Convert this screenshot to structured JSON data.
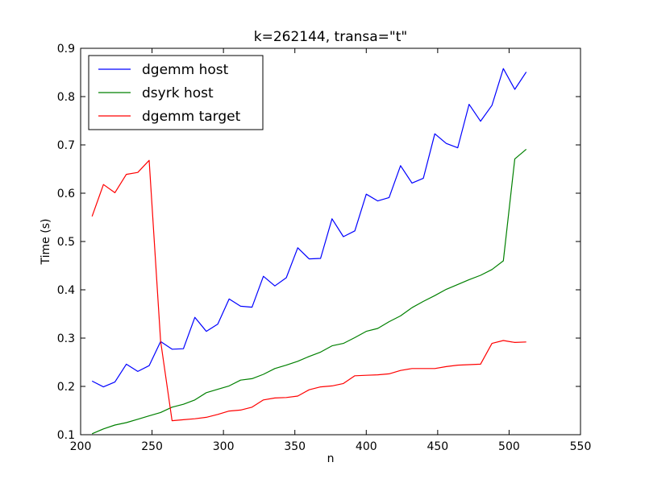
{
  "chart_data": {
    "type": "line",
    "title": "k=262144, transa=\"t\"",
    "xlabel": "n",
    "ylabel": "Time (s)",
    "xlim": [
      200,
      550
    ],
    "ylim": [
      0.1,
      0.9
    ],
    "xticks": [
      "200",
      "250",
      "300",
      "350",
      "400",
      "450",
      "500",
      "550"
    ],
    "yticks": [
      "0.1",
      "0.2",
      "0.3",
      "0.4",
      "0.5",
      "0.6",
      "0.7",
      "0.8",
      "0.9"
    ],
    "grid": false,
    "legend": "top-left",
    "x": [
      208,
      216,
      224,
      232,
      240,
      248,
      256,
      264,
      272,
      280,
      288,
      296,
      304,
      312,
      320,
      328,
      336,
      344,
      352,
      360,
      368,
      376,
      384,
      392,
      400,
      408,
      416,
      424,
      432,
      440,
      448,
      456,
      464,
      472,
      480,
      488,
      496,
      504,
      512
    ],
    "series": [
      {
        "name": "dgemm host",
        "color": "#0000ff",
        "values": [
          0.211,
          0.199,
          0.209,
          0.246,
          0.231,
          0.243,
          0.293,
          0.277,
          0.278,
          0.343,
          0.314,
          0.329,
          0.381,
          0.366,
          0.364,
          0.428,
          0.408,
          0.425,
          0.487,
          0.464,
          0.465,
          0.547,
          0.51,
          0.522,
          0.598,
          0.584,
          0.591,
          0.657,
          0.621,
          0.631,
          0.723,
          0.703,
          0.694,
          0.784,
          0.749,
          0.782,
          0.858,
          0.815,
          0.851
        ]
      },
      {
        "name": "dsyrk host",
        "color": "#008000",
        "values": [
          0.102,
          0.112,
          0.12,
          0.125,
          0.132,
          0.139,
          0.146,
          0.157,
          0.163,
          0.172,
          0.187,
          0.194,
          0.201,
          0.213,
          0.216,
          0.225,
          0.237,
          0.244,
          0.252,
          0.262,
          0.271,
          0.284,
          0.289,
          0.301,
          0.314,
          0.32,
          0.334,
          0.346,
          0.363,
          0.376,
          0.388,
          0.401,
          0.411,
          0.421,
          0.43,
          0.442,
          0.46,
          0.671,
          0.691
        ]
      },
      {
        "name": "dgemm target",
        "color": "#ff0000",
        "values": [
          0.552,
          0.618,
          0.601,
          0.639,
          0.643,
          0.668,
          0.294,
          0.129,
          0.131,
          0.133,
          0.136,
          0.142,
          0.149,
          0.151,
          0.157,
          0.172,
          0.176,
          0.177,
          0.18,
          0.193,
          0.199,
          0.201,
          0.206,
          0.222,
          0.223,
          0.224,
          0.226,
          0.233,
          0.237,
          0.237,
          0.237,
          0.241,
          0.244,
          0.245,
          0.246,
          0.289,
          0.295,
          0.291,
          0.292
        ]
      }
    ]
  }
}
